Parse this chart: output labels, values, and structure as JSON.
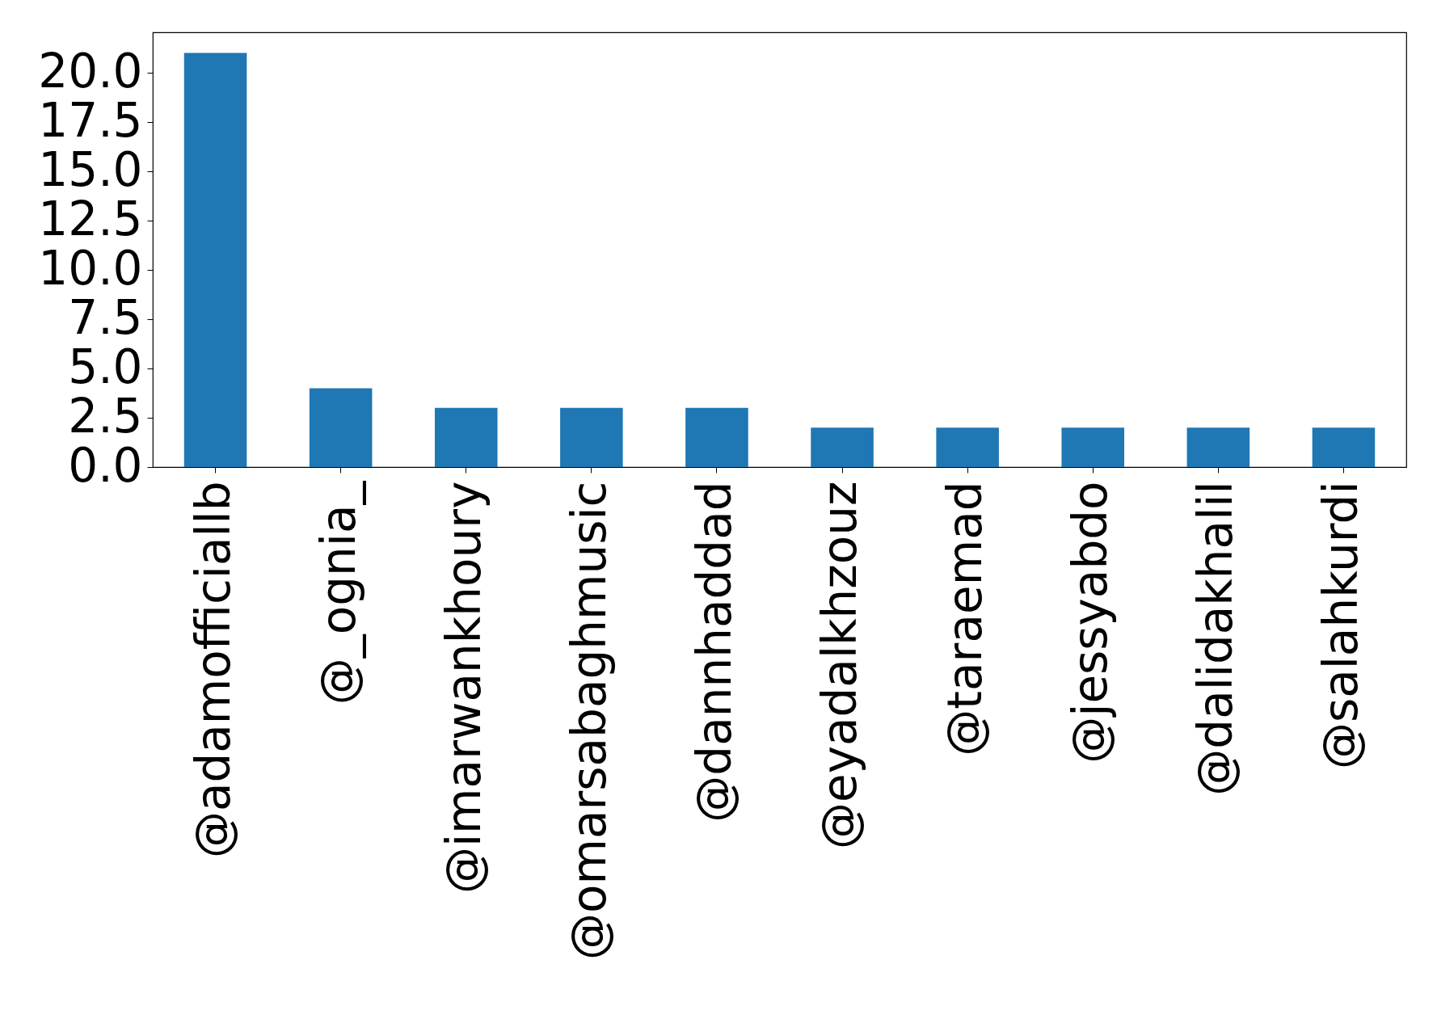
{
  "chart_data": {
    "type": "bar",
    "categories": [
      "@adamofficiallb",
      "@_ognia_",
      "@imarwankhoury",
      "@omarsabaghmusic",
      "@dannhaddad",
      "@eyadalkhzouz",
      "@taraemad",
      "@jessyabdo",
      "@dalidakhalil",
      "@salahkurdi"
    ],
    "values": [
      21,
      4,
      3,
      3,
      3,
      2,
      2,
      2,
      2,
      2
    ],
    "color": "#1f77b4",
    "ylim": [
      0,
      22.05
    ],
    "yticks": [
      {
        "value": 0,
        "label": "0.0"
      },
      {
        "value": 2.5,
        "label": "2.5"
      },
      {
        "value": 5,
        "label": "5.0"
      },
      {
        "value": 7.5,
        "label": "7.5"
      },
      {
        "value": 10,
        "label": "10.0"
      },
      {
        "value": 12.5,
        "label": "12.5"
      },
      {
        "value": 15,
        "label": "15.0"
      },
      {
        "value": 17.5,
        "label": "17.5"
      },
      {
        "value": 20,
        "label": "20.0"
      }
    ],
    "grid": false
  }
}
